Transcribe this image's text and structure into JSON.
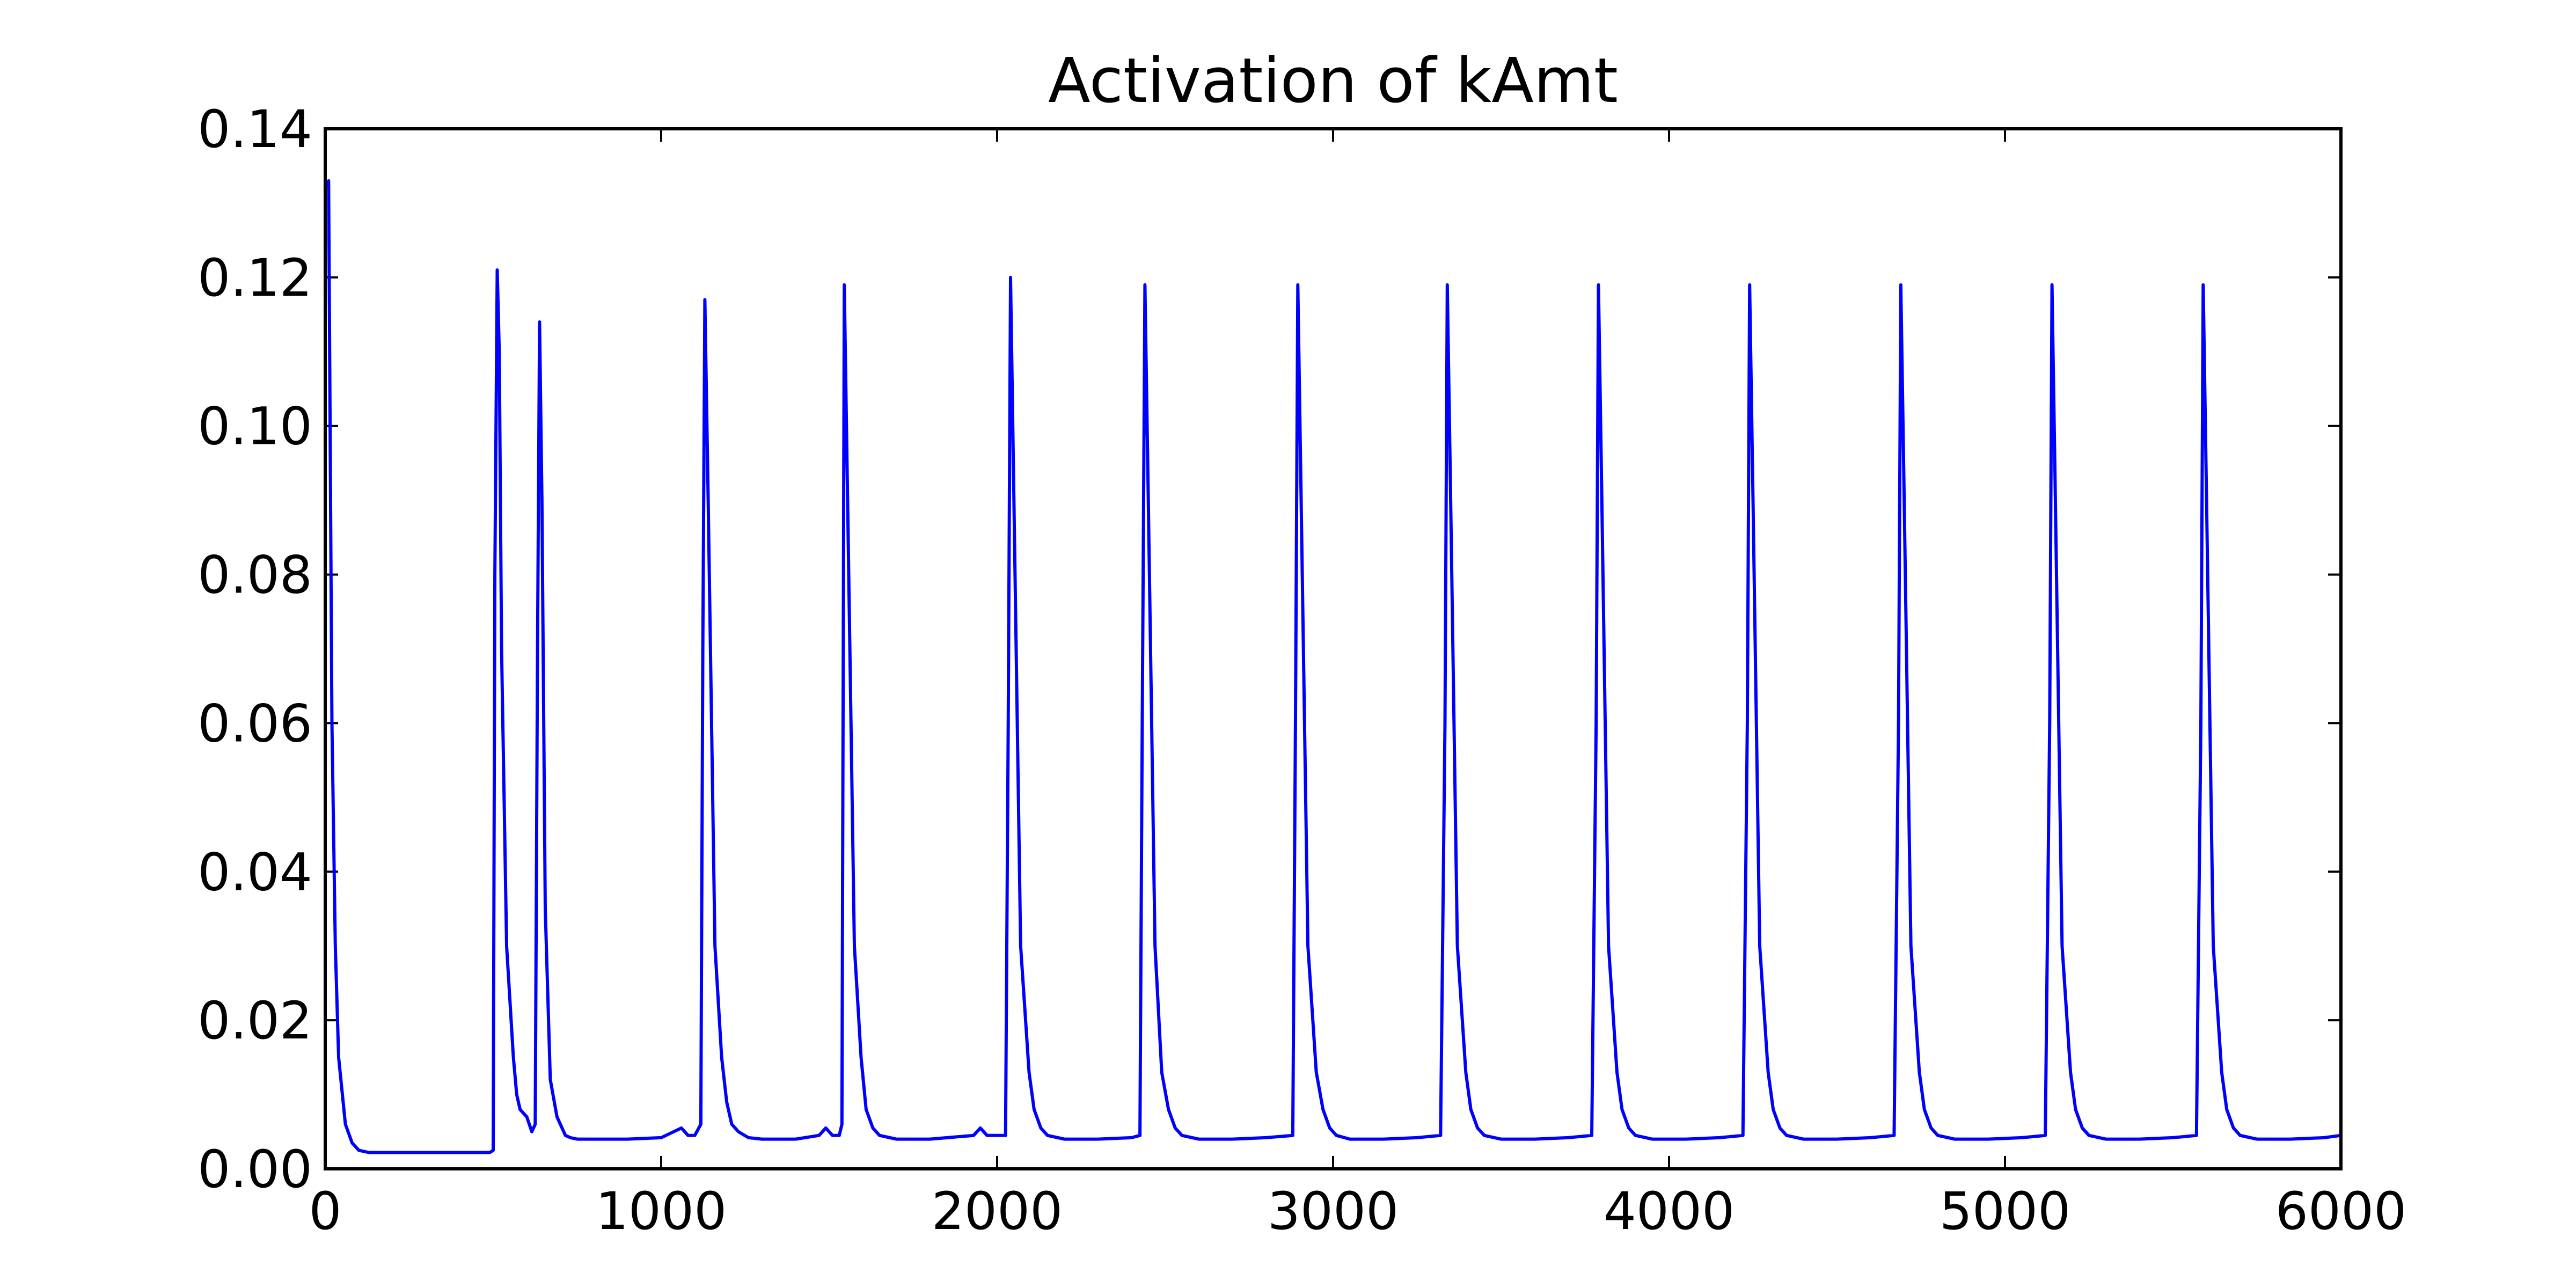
{
  "chart_data": {
    "type": "line",
    "title": "Activation of kAmt",
    "xlabel": "",
    "ylabel": "",
    "xlim": [
      0,
      6000
    ],
    "ylim": [
      0,
      0.14
    ],
    "grid": false,
    "xticks": [
      0,
      1000,
      2000,
      3000,
      4000,
      5000,
      6000
    ],
    "xtick_labels": [
      "0",
      "1000",
      "2000",
      "3000",
      "4000",
      "5000",
      "6000"
    ],
    "yticks": [
      0,
      0.02,
      0.04,
      0.06,
      0.08,
      0.1,
      0.12,
      0.14
    ],
    "ytick_labels": [
      "0.00",
      "0.02",
      "0.04",
      "0.06",
      "0.08",
      "0.10",
      "0.12",
      "0.14"
    ],
    "series": [
      {
        "color": "#0000ff",
        "x": [
          0,
          10,
          20,
          30,
          40,
          60,
          80,
          100,
          130,
          200,
          300,
          400,
          490,
          500,
          505,
          512,
          518,
          525,
          540,
          560,
          570,
          580,
          600,
          615,
          625,
          632,
          638,
          645,
          655,
          670,
          690,
          705,
          715,
          730,
          750,
          800,
          900,
          1000,
          1060,
          1080,
          1100,
          1118,
          1124,
          1130,
          1140,
          1160,
          1180,
          1195,
          1210,
          1230,
          1260,
          1300,
          1400,
          1470,
          1490,
          1510,
          1530,
          1538,
          1545,
          1555,
          1575,
          1595,
          1610,
          1630,
          1650,
          1700,
          1800,
          1930,
          1950,
          1970,
          2025,
          2033,
          2040,
          2050,
          2070,
          2095,
          2110,
          2130,
          2150,
          2200,
          2300,
          2400,
          2425,
          2432,
          2440,
          2450,
          2470,
          2490,
          2510,
          2530,
          2550,
          2600,
          2700,
          2800,
          2880,
          2888,
          2895,
          2905,
          2925,
          2950,
          2970,
          2990,
          3010,
          3050,
          3150,
          3250,
          3320,
          3333,
          3340,
          3350,
          3370,
          3395,
          3410,
          3430,
          3450,
          3500,
          3600,
          3700,
          3770,
          3783,
          3790,
          3800,
          3820,
          3845,
          3860,
          3880,
          3900,
          3950,
          4050,
          4150,
          4220,
          4233,
          4240,
          4250,
          4270,
          4295,
          4310,
          4330,
          4350,
          4400,
          4500,
          4600,
          4670,
          4683,
          4690,
          4700,
          4720,
          4745,
          4760,
          4780,
          4800,
          4850,
          4950,
          5050,
          5120,
          5133,
          5140,
          5150,
          5170,
          5195,
          5210,
          5230,
          5250,
          5300,
          5400,
          5500,
          5570,
          5583,
          5590,
          5600,
          5620,
          5645,
          5660,
          5680,
          5700,
          5750,
          5850,
          5950,
          6000
        ],
        "y": [
          0.132,
          0.133,
          0.06,
          0.03,
          0.015,
          0.006,
          0.0035,
          0.0025,
          0.0022,
          0.0022,
          0.0022,
          0.0022,
          0.0022,
          0.0025,
          0.08,
          0.121,
          0.11,
          0.07,
          0.03,
          0.015,
          0.01,
          0.008,
          0.007,
          0.005,
          0.006,
          0.07,
          0.114,
          0.09,
          0.035,
          0.012,
          0.007,
          0.0055,
          0.0045,
          0.0042,
          0.004,
          0.004,
          0.004,
          0.0042,
          0.0055,
          0.0045,
          0.0045,
          0.006,
          0.07,
          0.117,
          0.09,
          0.03,
          0.015,
          0.009,
          0.006,
          0.005,
          0.0042,
          0.004,
          0.004,
          0.0045,
          0.0055,
          0.0045,
          0.0045,
          0.006,
          0.119,
          0.09,
          0.03,
          0.015,
          0.008,
          0.0055,
          0.0045,
          0.004,
          0.004,
          0.0045,
          0.0055,
          0.0045,
          0.0045,
          0.06,
          0.12,
          0.09,
          0.03,
          0.013,
          0.008,
          0.0055,
          0.0045,
          0.004,
          0.004,
          0.0042,
          0.0045,
          0.06,
          0.119,
          0.09,
          0.03,
          0.013,
          0.008,
          0.0055,
          0.0045,
          0.004,
          0.004,
          0.0042,
          0.0045,
          0.06,
          0.119,
          0.09,
          0.03,
          0.013,
          0.008,
          0.0055,
          0.0045,
          0.004,
          0.004,
          0.0042,
          0.0045,
          0.06,
          0.119,
          0.09,
          0.03,
          0.013,
          0.008,
          0.0055,
          0.0045,
          0.004,
          0.004,
          0.0042,
          0.0045,
          0.06,
          0.119,
          0.09,
          0.03,
          0.013,
          0.008,
          0.0055,
          0.0045,
          0.004,
          0.004,
          0.0042,
          0.0045,
          0.06,
          0.119,
          0.09,
          0.03,
          0.013,
          0.008,
          0.0055,
          0.0045,
          0.004,
          0.004,
          0.0042,
          0.0045,
          0.06,
          0.119,
          0.09,
          0.03,
          0.013,
          0.008,
          0.0055,
          0.0045,
          0.004,
          0.004,
          0.0042,
          0.0045,
          0.06,
          0.119,
          0.09,
          0.03,
          0.013,
          0.008,
          0.0055,
          0.0045,
          0.004,
          0.004,
          0.0042,
          0.0045,
          0.06,
          0.119,
          0.09,
          0.03,
          0.013,
          0.008,
          0.0055,
          0.0045,
          0.004,
          0.004,
          0.0042,
          0.0045
        ]
      }
    ]
  }
}
